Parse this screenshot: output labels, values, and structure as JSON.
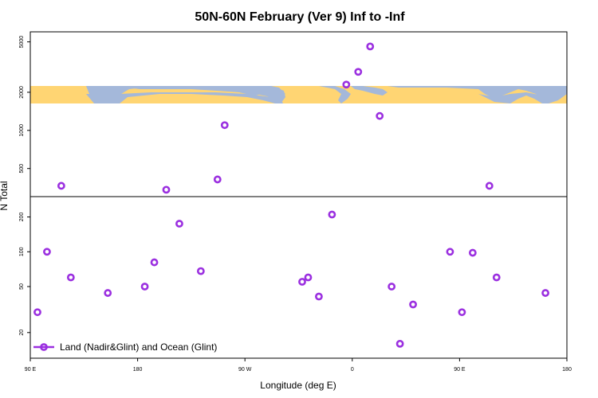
{
  "chart_data": {
    "type": "scatter",
    "title": "50N-60N February (Ver 9)   Inf to -Inf",
    "xlabel": "Longitude (deg E)",
    "ylabel": "N Total",
    "x_ticks": [
      {
        "value": 90,
        "label": "90 E"
      },
      {
        "value": 180,
        "label": "180"
      },
      {
        "value": 270,
        "label": "90 W"
      },
      {
        "value": 360,
        "label": "0"
      },
      {
        "value": 450,
        "label": "90 E"
      },
      {
        "value": 540,
        "label": "180"
      }
    ],
    "xlim": [
      90,
      540
    ],
    "upper_panel": {
      "scale": "log",
      "ylim": [
        300,
        6000
      ],
      "y_ticks": [
        {
          "value": 500,
          "label": "500"
        },
        {
          "value": 1000,
          "label": "1000"
        },
        {
          "value": 2000,
          "label": "2000"
        },
        {
          "value": 5000,
          "label": "5000"
        }
      ]
    },
    "lower_panel": {
      "scale": "log",
      "ylim": [
        12,
        300
      ],
      "y_ticks": [
        {
          "value": 20,
          "label": "20"
        },
        {
          "value": 50,
          "label": "50"
        },
        {
          "value": 100,
          "label": "100"
        },
        {
          "value": 200,
          "label": "200"
        }
      ]
    },
    "series": [
      {
        "name": "Land (Nadir&Glint) and Ocean (Glint)",
        "color": "#9b30e0",
        "points": [
          {
            "x": 96,
            "y": 30
          },
          {
            "x": 104,
            "y": 100
          },
          {
            "x": 116,
            "y": 365
          },
          {
            "x": 124,
            "y": 60
          },
          {
            "x": 155,
            "y": 44
          },
          {
            "x": 186,
            "y": 50
          },
          {
            "x": 194,
            "y": 81
          },
          {
            "x": 204,
            "y": 340
          },
          {
            "x": 215,
            "y": 175
          },
          {
            "x": 233,
            "y": 68
          },
          {
            "x": 247,
            "y": 410
          },
          {
            "x": 253,
            "y": 1100
          },
          {
            "x": 318,
            "y": 55
          },
          {
            "x": 323,
            "y": 60
          },
          {
            "x": 332,
            "y": 41
          },
          {
            "x": 343,
            "y": 210
          },
          {
            "x": 355,
            "y": 2300
          },
          {
            "x": 365,
            "y": 2900
          },
          {
            "x": 375,
            "y": 4600
          },
          {
            "x": 383,
            "y": 1300
          },
          {
            "x": 393,
            "y": 50
          },
          {
            "x": 400,
            "y": 16
          },
          {
            "x": 411,
            "y": 35
          },
          {
            "x": 442,
            "y": 100
          },
          {
            "x": 452,
            "y": 30
          },
          {
            "x": 461,
            "y": 98
          },
          {
            "x": 475,
            "y": 365
          },
          {
            "x": 481,
            "y": 60
          },
          {
            "x": 522,
            "y": 44
          }
        ]
      }
    ],
    "background_band": {
      "land_color": "#ffd573",
      "ocean_color": "#a4b8da",
      "lat_range": "50N-60N"
    },
    "legend": {
      "placement": "bottom-left",
      "label": "Land (Nadir&Glint) and Ocean (Glint)"
    }
  }
}
